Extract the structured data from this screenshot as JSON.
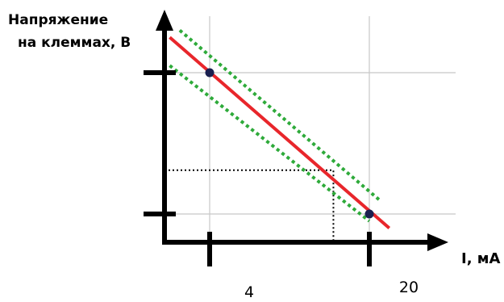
{
  "chart_data": {
    "type": "line",
    "ylabel_lines": [
      "Напряжение",
      "на клеммах, В"
    ],
    "xlabel": "I, мА",
    "x_ticks": [
      {
        "value": 4,
        "label": "4"
      },
      {
        "value": 20,
        "label": "20"
      }
    ],
    "y_ticks": [
      {
        "value": 1,
        "label": ""
      },
      {
        "value": 0,
        "label": ""
      }
    ],
    "xlim": [
      0,
      23
    ],
    "ylim": [
      -0.2,
      1.3
    ],
    "grid": true,
    "series": [
      {
        "style": "solid",
        "color": "#e8262b",
        "x": [
          0,
          22
        ],
        "y": [
          1.25,
          -0.1
        ]
      },
      {
        "style": "dotted",
        "color": "#2eaa3a",
        "x": [
          1,
          21
        ],
        "y": [
          1.3,
          0.1
        ]
      },
      {
        "style": "dotted",
        "color": "#2eaa3a",
        "x": [
          0,
          20
        ],
        "y": [
          1.05,
          -0.05
        ]
      }
    ],
    "points": [
      {
        "x": 4,
        "y": 1
      },
      {
        "x": 20,
        "y": 0
      }
    ],
    "reference_point": {
      "x": 16.4,
      "y": 0.31
    },
    "colors": {
      "axis": "#000000",
      "grid": "#c8c8c8",
      "points": "#1a2050",
      "guides": "#000000"
    }
  }
}
